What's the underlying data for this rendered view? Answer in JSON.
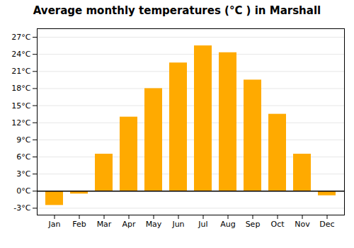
{
  "chart_data": {
    "type": "bar",
    "title": "Average monthly temperatures (°C ) in Marshall",
    "categories": [
      "Jan",
      "Feb",
      "Mar",
      "Apr",
      "May",
      "Jun",
      "Jul",
      "Aug",
      "Sep",
      "Oct",
      "Nov",
      "Dec"
    ],
    "values": [
      -2.5,
      -0.5,
      6.5,
      13.0,
      18.0,
      22.5,
      25.5,
      24.3,
      19.5,
      13.5,
      6.5,
      -0.8
    ],
    "color": "#FFAA00",
    "ylim": [
      -4.2,
      28.5
    ],
    "yticks": [
      {
        "value": -3,
        "label": "-3°C"
      },
      {
        "value": 0,
        "label": "0°C"
      },
      {
        "value": 3,
        "label": "3°C"
      },
      {
        "value": 6,
        "label": "6°C"
      },
      {
        "value": 9,
        "label": "9°C"
      },
      {
        "value": 12,
        "label": "12°C"
      },
      {
        "value": 15,
        "label": "15°C"
      },
      {
        "value": 18,
        "label": "18°C"
      },
      {
        "value": 21,
        "label": "21°C"
      },
      {
        "value": 24,
        "label": "24°C"
      },
      {
        "value": 27,
        "label": "27°C"
      }
    ],
    "grid": true
  }
}
